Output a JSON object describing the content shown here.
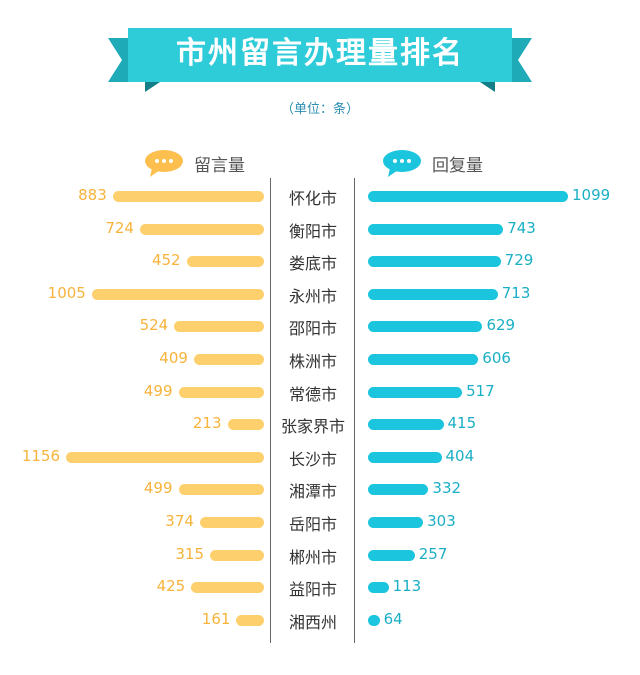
{
  "title": "市州留言办理量排名",
  "unit": "（单位：条）",
  "legend": {
    "left": "留言量",
    "right": "回复量"
  },
  "colors": {
    "banner": "#2ecbd9",
    "banner_dark": "#1a9aa6",
    "left_bar": "#fdd06d",
    "right_bar": "#1ac5dd"
  },
  "chart_data": {
    "type": "bar",
    "orientation": "horizontal-butterfly",
    "categories": [
      "怀化市",
      "衡阳市",
      "娄底市",
      "永州市",
      "邵阳市",
      "株洲市",
      "常德市",
      "张家界市",
      "长沙市",
      "湘潭市",
      "岳阳市",
      "郴州市",
      "益阳市",
      "湘西州"
    ],
    "series": [
      {
        "name": "留言量",
        "values": [
          883,
          724,
          452,
          1005,
          524,
          409,
          499,
          213,
          1156,
          499,
          374,
          315,
          425,
          161
        ]
      },
      {
        "name": "回复量",
        "values": [
          1099,
          743,
          729,
          713,
          629,
          606,
          517,
          415,
          404,
          332,
          303,
          257,
          113,
          64
        ]
      }
    ]
  }
}
